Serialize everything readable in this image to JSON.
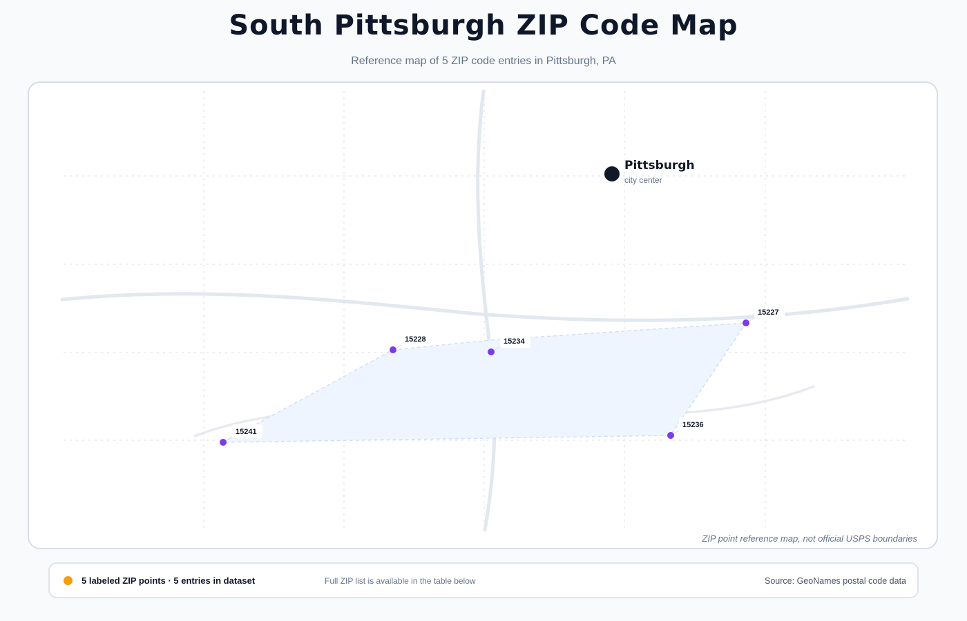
{
  "header": {
    "title": "South Pittsburgh ZIP Code Map",
    "subtitle": "Reference map of 5 ZIP code entries in Pittsburgh, PA"
  },
  "map": {
    "city": {
      "name": "Pittsburgh",
      "caption": "city center"
    },
    "zips": [
      {
        "code": "15227"
      },
      {
        "code": "15228"
      },
      {
        "code": "15234"
      },
      {
        "code": "15236"
      },
      {
        "code": "15241"
      }
    ],
    "note": "ZIP point reference map, not official USPS boundaries",
    "colors": {
      "zip_point": "#7c3aed",
      "area_fill": "#eff5fe",
      "city_marker": "#111827",
      "road": "#e2e8f0"
    }
  },
  "footer": {
    "count": "5 labeled ZIP points · 5 entries in dataset",
    "hint": "Full ZIP list is available in the table below",
    "source": "Source: GeoNames postal code data",
    "dot_color": "#f59e0b"
  }
}
